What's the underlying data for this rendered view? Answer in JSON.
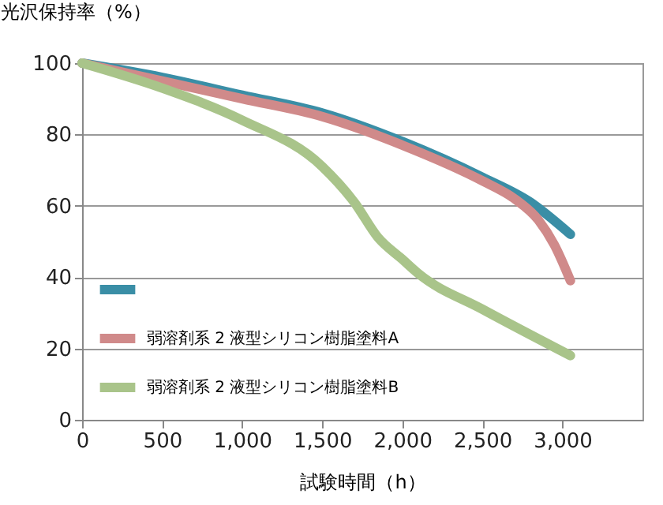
{
  "chart_data": {
    "type": "line",
    "ylabel": "光沢保持率（%）",
    "xlabel": "試験時間（h）",
    "xlim": [
      0,
      3500
    ],
    "xticks": [
      0,
      500,
      {
        "value": 1000,
        "label": "1,000"
      },
      {
        "value": 1500,
        "label": "1,500"
      },
      {
        "value": 2000,
        "label": "2,000"
      },
      {
        "value": 2500,
        "label": "2,500"
      },
      {
        "value": 3000,
        "label": "3,000"
      }
    ],
    "ylim": [
      0,
      100
    ],
    "yticks": [
      0,
      20,
      40,
      60,
      80,
      100
    ],
    "grid": "y",
    "legend": "bottom left",
    "line_style": "solid",
    "marker": "none",
    "series": [
      {
        "color": "#3a8ea6",
        "x": [
          0,
          500,
          1000,
          1500,
          2000,
          2500,
          2800,
          3050
        ],
        "values": [
          100,
          96,
          91,
          86,
          78,
          68,
          61,
          52
        ]
      },
      {
        "name": "弱溶剤系 2 液型シリコン樹脂塗料A",
        "color": "#d08a8a",
        "x": [
          0,
          500,
          1000,
          1500,
          2000,
          2500,
          2700,
          2850,
          2950,
          3050
        ],
        "values": [
          100,
          95,
          90,
          85,
          77,
          67,
          62,
          56,
          49,
          39
        ]
      },
      {
        "name": "弱溶剤系 2 液型シリコン樹脂塗料B",
        "color": "#a9c48a",
        "x": [
          0,
          500,
          1000,
          1500,
          1700,
          1850,
          2000,
          2100,
          2500,
          3050
        ],
        "values": [
          100,
          93,
          84,
          71,
          61,
          51,
          45,
          41,
          31,
          18
        ]
      }
    ]
  }
}
